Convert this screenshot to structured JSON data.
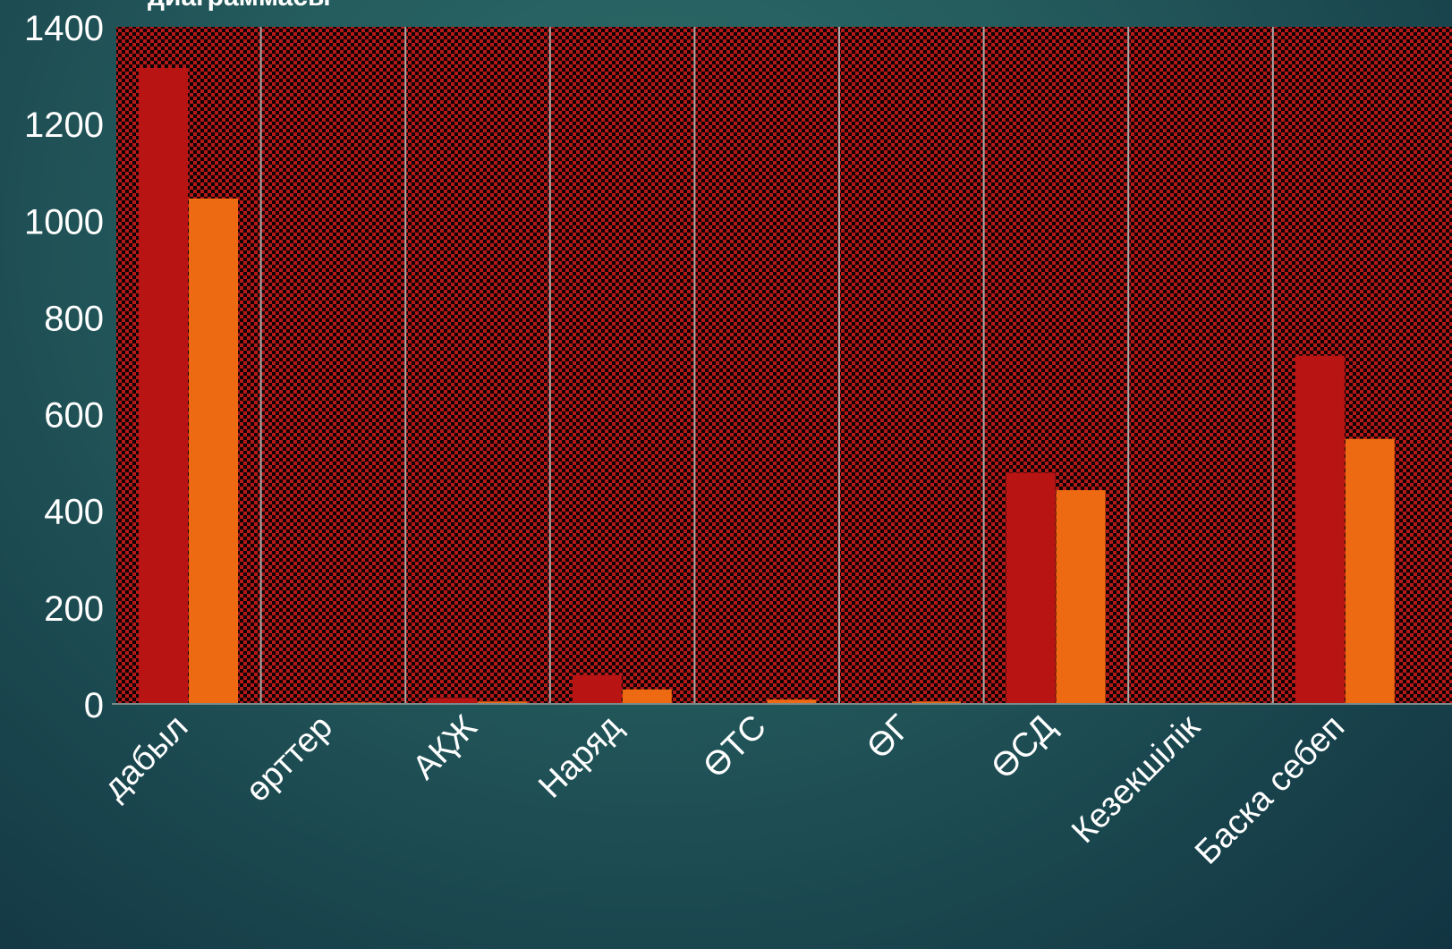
{
  "slide": {
    "title_fragment": "диаграммасы"
  },
  "colors": {
    "series_1": "#b81414",
    "series_2": "#ee6a12",
    "plot_bg_red": "#b51818",
    "plot_bg_check": "#0e0404",
    "divider": "#a9a9a9",
    "axis_text": "#ffffff"
  },
  "chart_data": {
    "type": "bar",
    "categories": [
      "дабыл",
      "өрттер",
      "АҚЖ",
      "Наряд",
      "ӨТС",
      "ӨГ",
      "ӨСД",
      "Кезекшілік",
      "Баска себеп"
    ],
    "series": [
      {
        "values": [
          1315,
          0,
          12,
          60,
          0,
          3,
          478,
          0,
          720
        ]
      },
      {
        "values": [
          1045,
          3,
          5,
          30,
          9,
          5,
          442,
          3,
          548
        ]
      }
    ],
    "ylim": [
      0,
      1400
    ],
    "y_ticks": [
      0,
      200,
      400,
      600,
      800,
      1000,
      1200,
      1400
    ],
    "xlabel": "",
    "ylabel": "",
    "grid": false,
    "legend": "none"
  }
}
